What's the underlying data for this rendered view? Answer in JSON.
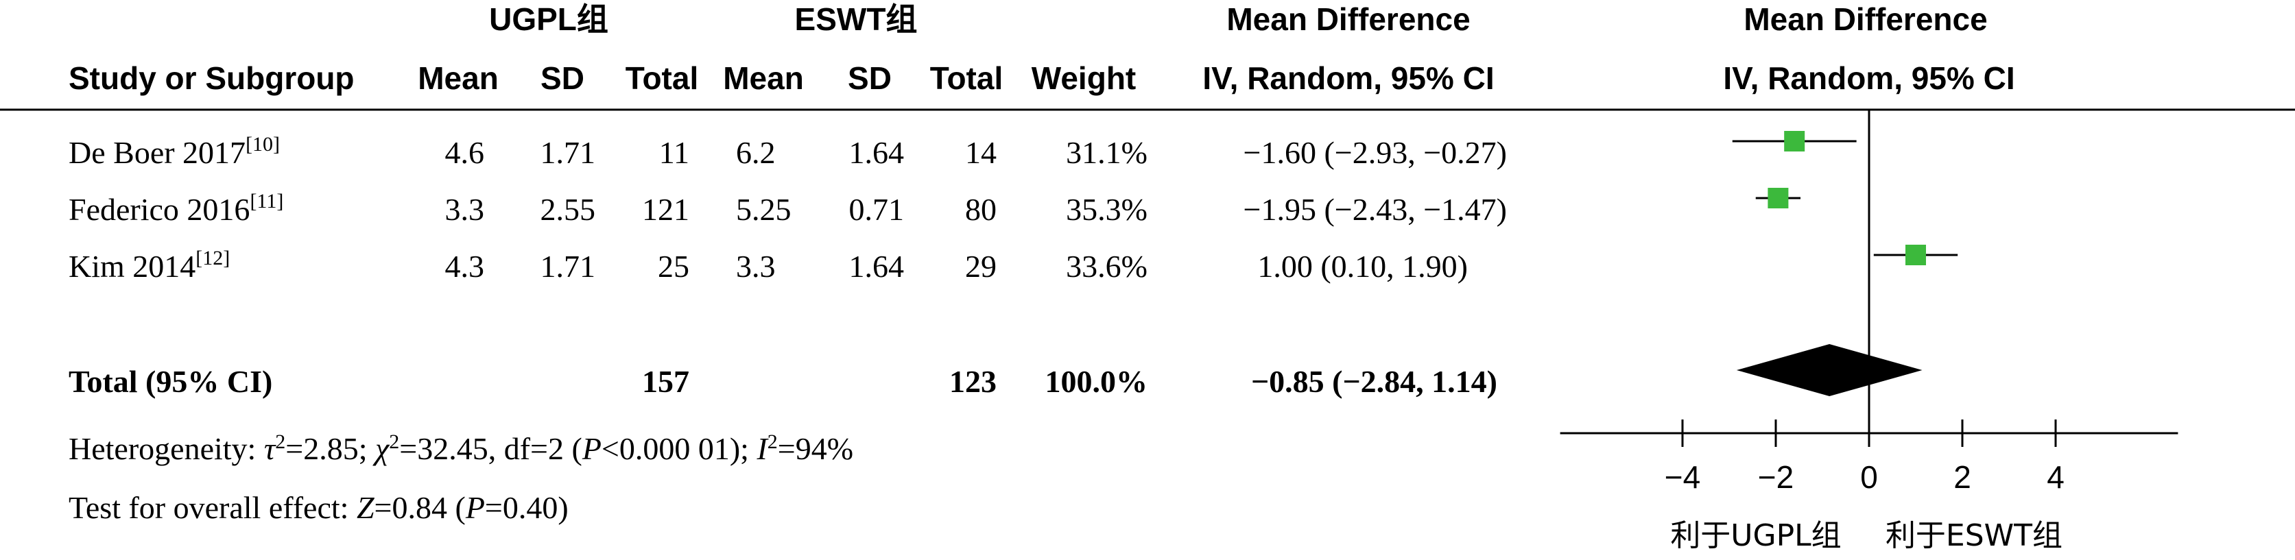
{
  "header": {
    "group_left": "UGPL组",
    "group_right": "ESWT组",
    "mean_difference": "Mean Difference",
    "plot_mean_difference": "Mean Difference",
    "study_col": "Study or Subgroup",
    "mean": "Mean",
    "sd": "SD",
    "total": "Total",
    "weight": "Weight",
    "method": "IV, Random, 95% CI",
    "plot_method": "IV, Random, 95% CI"
  },
  "rows": [
    {
      "study": "De Boer 2017",
      "ref": "[10]",
      "mean1": "4.6",
      "sd1": "1.71",
      "total1": "11",
      "mean2": "6.2",
      "sd2": "1.64",
      "total2": "14",
      "weight": "31.1%",
      "ci_text": "−1.60 (−2.93, −0.27)"
    },
    {
      "study": "Federico 2016",
      "ref": "[11]",
      "mean1": "3.3",
      "sd1": "2.55",
      "total1": "121",
      "mean2": "5.25",
      "sd2": "0.71",
      "total2": "80",
      "weight": "35.3%",
      "ci_text": "−1.95 (−2.43, −1.47)"
    },
    {
      "study": "Kim 2014",
      "ref": "[12]",
      "mean1": "4.3",
      "sd1": "1.71",
      "total1": "25",
      "mean2": "3.3",
      "sd2": "1.64",
      "total2": "29",
      "weight": "33.6%",
      "ci_text": "1.00 (0.10, 1.90)"
    }
  ],
  "total": {
    "label": "Total (95% CI)",
    "total1": "157",
    "total2": "123",
    "weight": "100.0%",
    "ci_text": "−0.85 (−2.84, 1.14)"
  },
  "heterogeneity": {
    "prefix": "Heterogeneity: ",
    "tau_sym": "τ",
    "sup2": "2",
    "tau_val": "=2.85; ",
    "chi_sym": "χ",
    "chi_val": "=32.45, df=2 (",
    "p_sym": "P",
    "p_val": "<0.000 01); ",
    "i_sym": "I",
    "i_val": "=94%"
  },
  "overall": {
    "prefix": "Test for overall effect: ",
    "z_sym": "Z",
    "z_val": "=0.84 (",
    "p_sym": "P",
    "p_val": "=0.40)"
  },
  "favours": {
    "left": "利于UGPL组",
    "right": "利于ESWT组"
  },
  "colors": {
    "marker": "#3cb93c",
    "diamond": "#000000",
    "line": "#000000"
  },
  "chart_data": {
    "type": "forest",
    "x_ticks": [
      -4,
      -2,
      0,
      2,
      4
    ],
    "x_tick_labels": [
      "−4",
      "−2",
      "0",
      "2",
      "4"
    ],
    "xlim": [
      -7.8,
      7.8
    ],
    "studies": [
      {
        "name": "De Boer 2017",
        "estimate": -1.6,
        "ci_low": -2.93,
        "ci_high": -0.27,
        "weight": 31.1
      },
      {
        "name": "Federico 2016",
        "estimate": -1.95,
        "ci_low": -2.43,
        "ci_high": -1.47,
        "weight": 35.3
      },
      {
        "name": "Kim 2014",
        "estimate": 1.0,
        "ci_low": 0.1,
        "ci_high": 1.9,
        "weight": 33.6
      }
    ],
    "pooled": {
      "estimate": -0.85,
      "ci_low": -2.84,
      "ci_high": 1.14
    }
  }
}
